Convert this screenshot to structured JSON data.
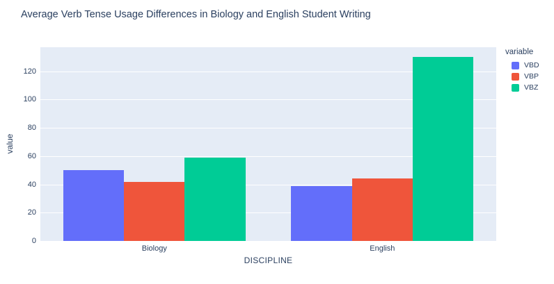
{
  "title": "Average Verb Tense Usage Differences in Biology and English Student Writing",
  "axes": {
    "x_title": "DISCIPLINE",
    "y_title": "value"
  },
  "legend": {
    "title": "variable",
    "items": [
      "VBD",
      "VBP",
      "VBZ"
    ]
  },
  "colors": {
    "plot_background": "#E5ECF6",
    "gridline": "#FFFFFF",
    "text": "#2A3F5F",
    "series": [
      "#636EFA",
      "#EF553B",
      "#00CC96"
    ]
  },
  "chart_data": {
    "type": "bar",
    "mode": "grouped",
    "title": "Average Verb Tense Usage Differences in Biology and English Student Writing",
    "categories": [
      "Biology",
      "English"
    ],
    "series": [
      {
        "name": "VBD",
        "color": "#636EFA",
        "values": [
          50,
          39
        ]
      },
      {
        "name": "VBP",
        "color": "#EF553B",
        "values": [
          42,
          44
        ]
      },
      {
        "name": "VBZ",
        "color": "#00CC96",
        "values": [
          59,
          130
        ]
      }
    ],
    "xlabel": "DISCIPLINE",
    "ylabel": "value",
    "ylim": [
      0,
      137
    ],
    "yticks": [
      0,
      20,
      40,
      60,
      80,
      100,
      120
    ],
    "grid": true,
    "legend_title": "variable",
    "legend_position": "right"
  }
}
